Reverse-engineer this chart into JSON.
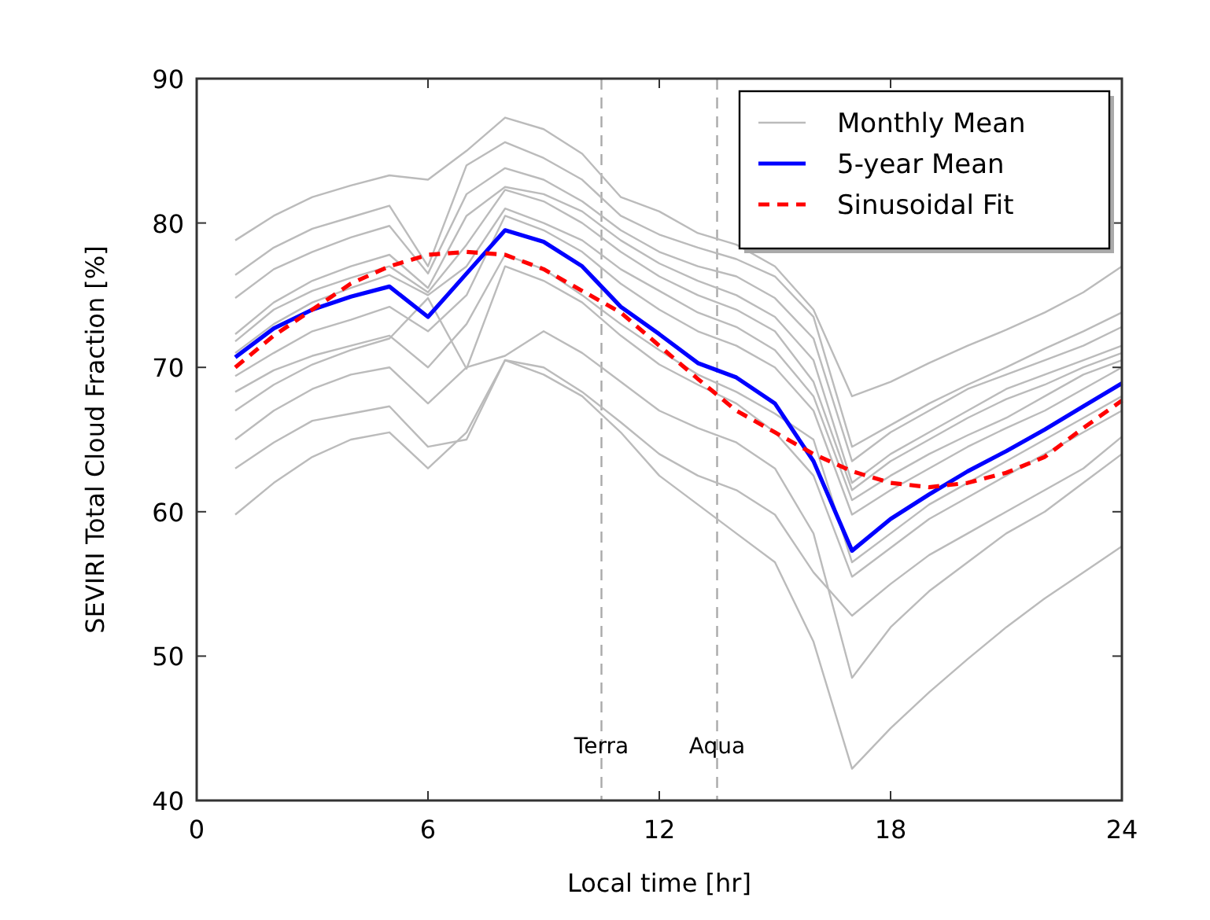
{
  "chart_data": {
    "type": "line",
    "xlabel": "Local time [hr]",
    "ylabel": "SEVIRI Total Cloud Fraction [%]",
    "x": [
      1,
      2,
      3,
      4,
      5,
      6,
      7,
      8,
      9,
      10,
      11,
      12,
      13,
      14,
      15,
      16,
      17,
      18,
      19,
      20,
      21,
      22,
      23,
      24
    ],
    "xlim": [
      0,
      24
    ],
    "xticks": [
      0,
      6,
      12,
      18,
      24
    ],
    "ylim": [
      40,
      90
    ],
    "yticks": [
      40,
      50,
      60,
      70,
      80,
      90
    ],
    "grid": false,
    "legend": "top right",
    "ref_lines": [
      {
        "axis": "x",
        "value": 10.5,
        "label": "Terra",
        "color": "#aaaaaa",
        "line_style": "dashed"
      },
      {
        "axis": "x",
        "value": 13.5,
        "label": "Aqua",
        "color": "#aaaaaa",
        "line_style": "dashed"
      }
    ],
    "series": [
      {
        "name": "Monthly Mean",
        "color": "#bbbbbb",
        "line_style": "solid",
        "values": [
          78.8,
          80.5,
          81.8,
          82.6,
          83.3,
          83,
          85,
          87.3,
          86.5,
          84.8,
          81.8,
          80.8,
          79.3,
          78.5,
          77,
          74,
          68,
          69,
          70.3,
          71.5,
          72.6,
          73.8,
          75.2,
          77
        ]
      },
      {
        "color": "#bbbbbb",
        "line_style": "solid",
        "values": [
          76.4,
          78.3,
          79.6,
          80.4,
          81.2,
          77,
          84,
          85.6,
          84.5,
          83,
          80.5,
          79.2,
          78.3,
          77.5,
          76.3,
          73.5,
          64.5,
          66,
          67.5,
          68.8,
          70,
          71.3,
          72.5,
          73.8
        ]
      },
      {
        "color": "#bbbbbb",
        "line_style": "solid",
        "values": [
          74.8,
          76.8,
          78,
          79,
          79.8,
          76.5,
          82,
          83.8,
          83,
          81.5,
          79.5,
          78,
          77,
          76.3,
          74.8,
          72,
          63.5,
          65.5,
          67,
          68.5,
          69.5,
          70.5,
          71.5,
          72.8
        ]
      },
      {
        "color": "#bbbbbb",
        "line_style": "solid",
        "values": [
          72.3,
          74.5,
          76,
          77,
          77.8,
          75.5,
          80.5,
          82.5,
          82,
          80.8,
          78.8,
          77.2,
          76,
          75,
          73.5,
          70.5,
          62,
          64,
          65.5,
          67,
          68.5,
          69.5,
          70.5,
          71.5
        ]
      },
      {
        "color": "#bbbbbb",
        "line_style": "solid",
        "values": [
          71.8,
          74,
          75.3,
          76.2,
          77,
          75.2,
          78.5,
          82.3,
          81.5,
          80,
          78,
          76.3,
          75,
          74,
          72.5,
          69,
          61.5,
          63.5,
          65,
          66.5,
          67.8,
          68.8,
          70,
          71
        ]
      },
      {
        "color": "#bbbbbb",
        "line_style": "solid",
        "values": [
          71,
          73,
          74.5,
          75.5,
          76.4,
          75,
          77,
          81,
          80,
          78.8,
          76.8,
          75.3,
          73.8,
          72.8,
          71.2,
          68,
          60.8,
          62.5,
          64,
          65.3,
          66.5,
          68,
          69.5,
          70.5
        ]
      },
      {
        "color": "#bbbbbb",
        "line_style": "solid",
        "values": [
          69.4,
          71,
          72.5,
          73.3,
          74.2,
          72.5,
          75,
          80.5,
          79.5,
          78,
          75.8,
          74,
          72.5,
          71.5,
          70,
          67,
          59.8,
          61.5,
          63,
          64.5,
          65.8,
          67,
          68.5,
          70
        ]
      },
      {
        "color": "#bbbbbb",
        "line_style": "solid",
        "values": [
          68.3,
          69.8,
          70.8,
          71.5,
          72.2,
          70,
          73,
          77.8,
          76.8,
          75,
          73,
          71.2,
          69.5,
          68.3,
          66.8,
          65,
          56.5,
          58.5,
          60.5,
          62,
          63.5,
          65,
          66.5,
          68
        ]
      },
      {
        "color": "#bbbbbb",
        "line_style": "solid",
        "values": [
          67,
          68.8,
          70.2,
          71.2,
          72,
          74.8,
          69.9,
          77,
          76,
          74.5,
          72.2,
          70.2,
          68.8,
          67.5,
          65.5,
          62.5,
          55.5,
          57.5,
          59.5,
          61,
          62.5,
          64,
          65.5,
          67
        ]
      },
      {
        "color": "#bbbbbb",
        "line_style": "solid",
        "values": [
          65,
          67,
          68.5,
          69.5,
          70,
          67.5,
          70,
          70.8,
          72.5,
          71,
          69,
          67,
          65.8,
          64.8,
          63,
          58.5,
          48.5,
          52,
          54.5,
          56.5,
          58.5,
          60,
          62,
          64
        ]
      },
      {
        "color": "#bbbbbb",
        "line_style": "solid",
        "values": [
          63,
          64.8,
          66.3,
          66.8,
          67.3,
          64.5,
          65,
          70.5,
          70,
          68.3,
          66.2,
          64,
          62.5,
          61.5,
          59.8,
          55.8,
          52.8,
          55,
          57,
          58.5,
          60,
          61.5,
          63,
          65.2
        ]
      },
      {
        "color": "#bbbbbb",
        "line_style": "solid",
        "values": [
          59.8,
          62,
          63.8,
          65,
          65.5,
          63,
          65.5,
          70.5,
          69.5,
          68,
          65.5,
          62.5,
          60.5,
          58.5,
          56.5,
          51,
          42.2,
          45,
          47.5,
          49.8,
          52,
          54,
          55.8,
          57.6
        ]
      },
      {
        "name": "5-year Mean",
        "color": "#0000ff",
        "line_style": "solid",
        "values": [
          70.7,
          72.7,
          74,
          74.9,
          75.6,
          73.5,
          76.5,
          79.5,
          78.7,
          77,
          74.2,
          72.3,
          70.3,
          69.3,
          67.5,
          63.5,
          57.3,
          59.5,
          61.2,
          62.8,
          64.2,
          65.7,
          67.3,
          68.9
        ]
      },
      {
        "name": "Sinusoidal Fit",
        "color": "#ff0000",
        "line_style": "dashed",
        "values": [
          70,
          72.2,
          74,
          75.8,
          77,
          77.8,
          78,
          77.8,
          76.8,
          75.3,
          73.8,
          71.5,
          69.2,
          67,
          65.5,
          64,
          62.8,
          62,
          61.7,
          62,
          62.7,
          63.8,
          65.8,
          67.7
        ]
      }
    ]
  }
}
